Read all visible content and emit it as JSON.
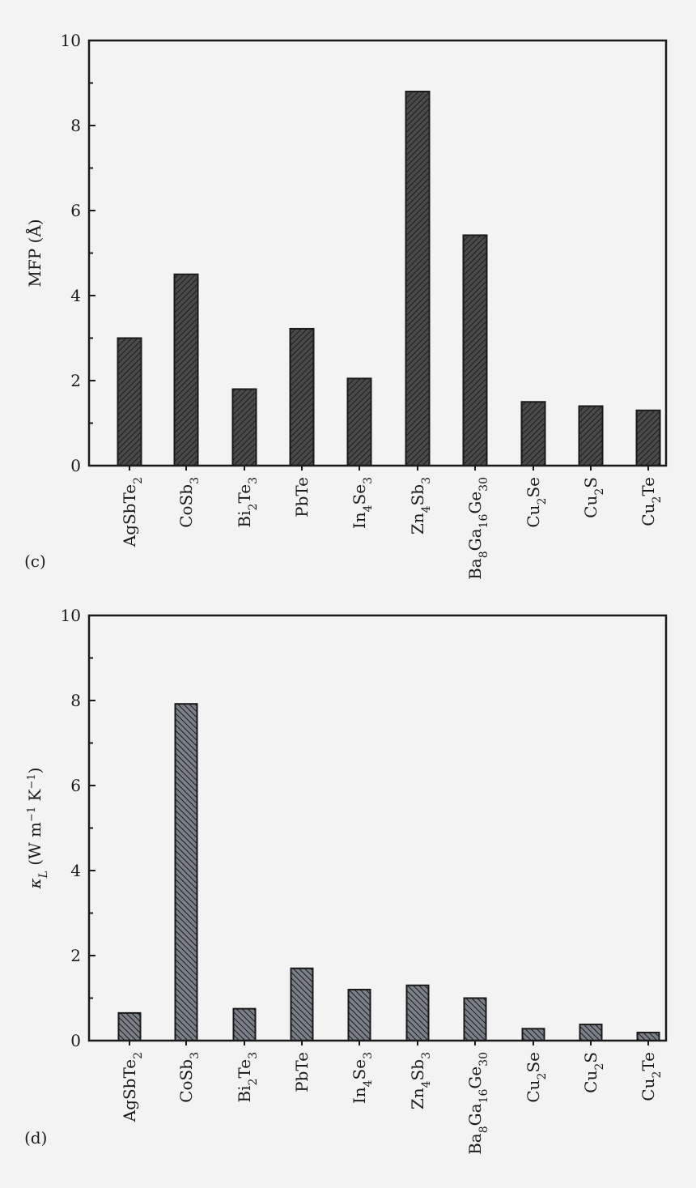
{
  "chart_data": [
    {
      "type": "bar",
      "panel_label": "(c)",
      "title": "",
      "ylabel": "MFP (Å)",
      "xlabel": "",
      "ylim": [
        0,
        10
      ],
      "yticks": [
        "0",
        "2",
        "4",
        "6",
        "8",
        "10"
      ],
      "hatch": "diagonal-up",
      "bar_color": "#4a4a4a",
      "categories": [
        {
          "base": "AgSbTe",
          "sub": "2"
        },
        {
          "base": "CoSb",
          "sub": "3"
        },
        {
          "base": "Bi",
          "sub": "2",
          "base2": "Te",
          "sub2": "3"
        },
        {
          "base": "PbTe"
        },
        {
          "base": "In",
          "sub": "4",
          "base2": "Se",
          "sub2": "3"
        },
        {
          "base": "Zn",
          "sub": "4",
          "base2": "Sb",
          "sub2": "3"
        },
        {
          "base": "Ba",
          "sub": "8",
          "base2": "Ga",
          "sub2": "16",
          "base3": "Ge",
          "sub3": "30"
        },
        {
          "base": "Cu",
          "sub": "2",
          "base2": "Se"
        },
        {
          "base": "Cu",
          "sub": "2",
          "base2": "S"
        },
        {
          "base": "Cu",
          "sub": "2",
          "base2": "Te"
        }
      ],
      "values": [
        3.0,
        4.5,
        1.8,
        3.22,
        2.05,
        8.8,
        5.42,
        1.5,
        1.4,
        1.3
      ]
    },
    {
      "type": "bar",
      "panel_label": "(d)",
      "title": "",
      "ylabel": "κ",
      "ylabel_sub": "L",
      "ylabel_rest": " (W m",
      "ylabel_sup1": "−1",
      "ylabel_mid": " K",
      "ylabel_sup2": "−1",
      "ylabel_end": ")",
      "xlabel": "",
      "ylim": [
        0,
        10
      ],
      "yticks": [
        "0",
        "2",
        "4",
        "6",
        "8",
        "10"
      ],
      "hatch": "diagonal-down",
      "bar_color": "#7a7f8a",
      "categories": [
        {
          "base": "AgSbTe",
          "sub": "2"
        },
        {
          "base": "CoSb",
          "sub": "3"
        },
        {
          "base": "Bi",
          "sub": "2",
          "base2": "Te",
          "sub2": "3"
        },
        {
          "base": "PbTe"
        },
        {
          "base": "In",
          "sub": "4",
          "base2": "Se",
          "sub2": "3"
        },
        {
          "base": "Zn",
          "sub": "4",
          "base2": "Sb",
          "sub2": "3"
        },
        {
          "base": "Ba",
          "sub": "8",
          "base2": "Ga",
          "sub2": "16",
          "base3": "Ge",
          "sub3": "30"
        },
        {
          "base": "Cu",
          "sub": "2",
          "base2": "Se"
        },
        {
          "base": "Cu",
          "sub": "2",
          "base2": "S"
        },
        {
          "base": "Cu",
          "sub": "2",
          "base2": "Te"
        }
      ],
      "values": [
        0.65,
        7.92,
        0.75,
        1.7,
        1.2,
        1.3,
        1.0,
        0.28,
        0.38,
        0.19
      ]
    }
  ]
}
